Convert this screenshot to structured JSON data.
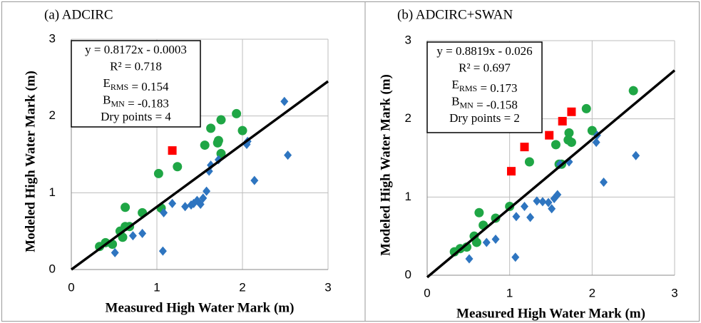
{
  "chart_data": [
    {
      "type": "scatter",
      "title": "(a)  ADCIRC",
      "x_label": "Measured High Water Mark (m)",
      "y_label": "Modeled High Water Mark (m)",
      "xlim": [
        0,
        3
      ],
      "ylim": [
        0,
        3
      ],
      "xticks": [
        0,
        1,
        2,
        3
      ],
      "yticks": [
        0,
        1,
        2,
        3
      ],
      "grid": true,
      "series": [
        {
          "marker": "circle",
          "color": "#1fa645",
          "x": [
            0.33,
            0.4,
            0.48,
            0.57,
            0.6,
            0.63,
            0.68,
            0.63,
            0.83,
            1.05,
            1.02,
            1.24,
            1.56,
            1.63,
            1.72,
            1.71,
            1.75,
            1.75,
            1.93,
            2.0
          ],
          "values": [
            0.3,
            0.35,
            0.33,
            0.5,
            0.42,
            0.56,
            0.56,
            0.81,
            0.74,
            0.8,
            1.25,
            1.34,
            1.62,
            1.84,
            1.68,
            1.65,
            1.95,
            1.51,
            2.03,
            1.81
          ]
        },
        {
          "marker": "square",
          "color": "#ff0000",
          "x": [
            1.18
          ],
          "values": [
            1.55
          ]
        },
        {
          "marker": "diamond",
          "color": "#2e75c0",
          "x": [
            0.51,
            0.72,
            0.83,
            1.07,
            1.08,
            1.18,
            1.33,
            1.4,
            1.43,
            1.47,
            1.51,
            1.54,
            1.58,
            1.61,
            1.63,
            1.72,
            2.05,
            2.06,
            2.14,
            2.49,
            2.53
          ],
          "values": [
            0.22,
            0.44,
            0.47,
            0.24,
            0.74,
            0.86,
            0.82,
            0.84,
            0.86,
            0.9,
            0.85,
            0.93,
            1.02,
            1.28,
            1.36,
            1.43,
            1.63,
            1.67,
            1.16,
            2.19,
            1.49
          ]
        }
      ],
      "fit": {
        "slope": 0.8172,
        "intercept": -0.0003
      },
      "annotation": [
        [
          "y = 0.8172x - 0.0003"
        ],
        [
          "R² =  0.718"
        ],
        [
          "E",
          {
            "sub": "RMS"
          },
          " = 0.154"
        ],
        [
          "B",
          {
            "sub": "MN"
          },
          " = -0.183"
        ],
        [
          "Dry points = 4"
        ]
      ]
    },
    {
      "type": "scatter",
      "title": "(b)  ADCIRC+SWAN",
      "x_label": "Measured High Water Mark (m)",
      "y_label": "Modeled High Water Mark (m)",
      "xlim": [
        0,
        3
      ],
      "ylim": [
        0,
        3
      ],
      "xticks": [
        0,
        1,
        2,
        3
      ],
      "yticks": [
        0,
        1,
        2,
        3
      ],
      "grid": true,
      "series": [
        {
          "marker": "circle",
          "color": "#1fa645",
          "x": [
            0.33,
            0.4,
            0.48,
            0.57,
            0.6,
            0.63,
            0.68,
            0.83,
            1.0,
            1.24,
            1.56,
            1.6,
            1.63,
            1.72,
            1.71,
            1.75,
            1.93,
            2.0,
            2.5
          ],
          "values": [
            0.3,
            0.34,
            0.36,
            0.5,
            0.42,
            0.8,
            0.64,
            0.73,
            0.88,
            1.45,
            1.67,
            1.42,
            1.42,
            1.82,
            1.73,
            1.7,
            2.13,
            1.85,
            2.36
          ]
        },
        {
          "marker": "square",
          "color": "#ff0000",
          "x": [
            1.02,
            1.18,
            1.48,
            1.64,
            1.75
          ],
          "values": [
            1.33,
            1.64,
            1.79,
            1.97,
            2.09
          ]
        },
        {
          "marker": "diamond",
          "color": "#2e75c0",
          "x": [
            0.51,
            0.72,
            0.83,
            1.07,
            1.08,
            1.18,
            1.25,
            1.33,
            1.4,
            1.47,
            1.51,
            1.54,
            1.58,
            1.61,
            1.72,
            2.05,
            2.06,
            2.14,
            2.53
          ],
          "values": [
            0.21,
            0.42,
            0.46,
            0.23,
            0.75,
            0.88,
            0.74,
            0.95,
            0.94,
            0.93,
            0.85,
            0.98,
            1.03,
            1.42,
            1.45,
            1.7,
            1.79,
            1.19,
            1.53
          ]
        }
      ],
      "fit": {
        "slope": 0.8819,
        "intercept": -0.026
      },
      "annotation": [
        [
          "y = 0.8819x - 0.026"
        ],
        [
          "R² = 0.697"
        ],
        [
          "E",
          {
            "sub": "RMS"
          },
          " = 0.173"
        ],
        [
          "B",
          {
            "sub": "MN"
          },
          " = -0.158"
        ],
        [
          "Dry points = 2"
        ]
      ]
    }
  ]
}
